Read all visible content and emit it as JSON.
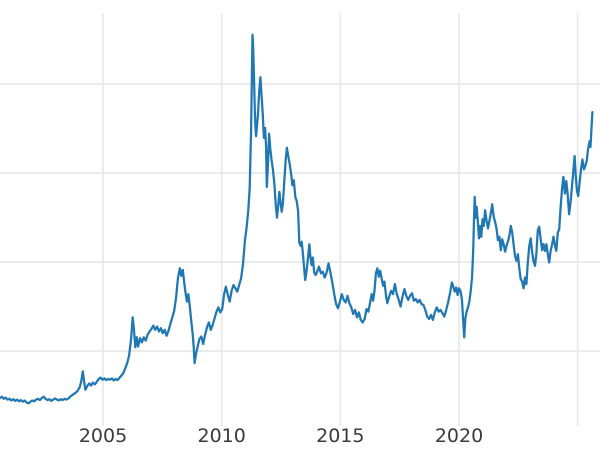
{
  "style": {
    "background": "#ffffff",
    "line_color": "#1f77b4",
    "grid_color": "#e8e8e8",
    "tick_label_color": "#3a3a3a"
  },
  "chart_data": {
    "type": "line",
    "title": "",
    "xlabel": "",
    "ylabel": "",
    "legend": null,
    "grid": true,
    "xlim": [
      2000.66,
      2025.94
    ],
    "ylim": [
      -1.56,
      52.59
    ],
    "x_tick_labels": [
      "2005",
      "2010",
      "2015",
      "2020"
    ],
    "x_tick_values": [
      2005,
      2010,
      2015,
      2020
    ],
    "x_grid_values": [
      2005,
      2010,
      2015,
      2020,
      2025
    ],
    "y_grid_values": [
      10.35,
      21.06,
      31.77,
      42.48
    ],
    "series": [
      {
        "name": "price",
        "color": "#1f77b4",
        "x": [
          2000.66,
          2000.74,
          2000.82,
          2000.9,
          2000.98,
          2001.06,
          2001.14,
          2001.22,
          2001.3,
          2001.38,
          2001.46,
          2001.54,
          2001.62,
          2001.7,
          2001.78,
          2001.86,
          2001.94,
          2002.02,
          2002.1,
          2002.18,
          2002.26,
          2002.34,
          2002.42,
          2002.5,
          2002.58,
          2002.66,
          2002.74,
          2002.82,
          2002.9,
          2002.98,
          2003.06,
          2003.14,
          2003.22,
          2003.3,
          2003.38,
          2003.46,
          2003.54,
          2003.62,
          2003.7,
          2003.78,
          2003.86,
          2003.94,
          2004.02,
          2004.08,
          2004.15,
          2004.2,
          2004.26,
          2004.34,
          2004.42,
          2004.5,
          2004.58,
          2004.66,
          2004.74,
          2004.82,
          2004.9,
          2004.98,
          2005.06,
          2005.14,
          2005.22,
          2005.3,
          2005.38,
          2005.46,
          2005.54,
          2005.62,
          2005.7,
          2005.78,
          2005.86,
          2005.94,
          2006.02,
          2006.1,
          2006.18,
          2006.25,
          2006.3,
          2006.36,
          2006.42,
          2006.48,
          2006.56,
          2006.64,
          2006.72,
          2006.8,
          2006.88,
          2006.96,
          2007.04,
          2007.12,
          2007.2,
          2007.28,
          2007.36,
          2007.44,
          2007.52,
          2007.6,
          2007.68,
          2007.76,
          2007.84,
          2007.92,
          2008.0,
          2008.08,
          2008.16,
          2008.24,
          2008.3,
          2008.36,
          2008.42,
          2008.48,
          2008.54,
          2008.6,
          2008.66,
          2008.72,
          2008.78,
          2008.82,
          2008.86,
          2008.92,
          2008.98,
          2009.06,
          2009.14,
          2009.22,
          2009.3,
          2009.38,
          2009.46,
          2009.54,
          2009.62,
          2009.7,
          2009.78,
          2009.86,
          2009.94,
          2010.02,
          2010.1,
          2010.18,
          2010.26,
          2010.34,
          2010.42,
          2010.5,
          2010.58,
          2010.66,
          2010.74,
          2010.82,
          2010.9,
          2010.98,
          2011.05,
          2011.12,
          2011.18,
          2011.24,
          2011.3,
          2011.33,
          2011.37,
          2011.41,
          2011.45,
          2011.49,
          2011.53,
          2011.58,
          2011.63,
          2011.68,
          2011.73,
          2011.78,
          2011.83,
          2011.87,
          2011.9,
          2011.95,
          2012.0,
          2012.05,
          2012.1,
          2012.16,
          2012.22,
          2012.28,
          2012.33,
          2012.38,
          2012.43,
          2012.48,
          2012.53,
          2012.58,
          2012.64,
          2012.7,
          2012.75,
          2012.8,
          2012.86,
          2012.92,
          2012.98,
          2013.04,
          2013.1,
          2013.16,
          2013.22,
          2013.27,
          2013.32,
          2013.37,
          2013.42,
          2013.47,
          2013.52,
          2013.58,
          2013.64,
          2013.69,
          2013.74,
          2013.79,
          2013.84,
          2013.9,
          2013.96,
          2014.02,
          2014.1,
          2014.18,
          2014.26,
          2014.34,
          2014.42,
          2014.5,
          2014.58,
          2014.66,
          2014.74,
          2014.82,
          2014.9,
          2014.98,
          2015.06,
          2015.14,
          2015.22,
          2015.3,
          2015.38,
          2015.46,
          2015.54,
          2015.62,
          2015.7,
          2015.78,
          2015.86,
          2015.94,
          2016.02,
          2016.1,
          2016.18,
          2016.26,
          2016.32,
          2016.38,
          2016.44,
          2016.5,
          2016.56,
          2016.62,
          2016.68,
          2016.74,
          2016.8,
          2016.86,
          2016.92,
          2016.98,
          2017.06,
          2017.14,
          2017.22,
          2017.3,
          2017.38,
          2017.46,
          2017.54,
          2017.62,
          2017.7,
          2017.78,
          2017.86,
          2017.94,
          2018.02,
          2018.1,
          2018.18,
          2018.26,
          2018.34,
          2018.42,
          2018.5,
          2018.58,
          2018.66,
          2018.74,
          2018.82,
          2018.9,
          2018.98,
          2019.06,
          2019.14,
          2019.22,
          2019.3,
          2019.38,
          2019.46,
          2019.54,
          2019.62,
          2019.7,
          2019.76,
          2019.82,
          2019.88,
          2019.94,
          2020.0,
          2020.06,
          2020.12,
          2020.17,
          2020.22,
          2020.27,
          2020.32,
          2020.38,
          2020.44,
          2020.5,
          2020.55,
          2020.6,
          2020.63,
          2020.66,
          2020.7,
          2020.74,
          2020.79,
          2020.84,
          2020.89,
          2020.94,
          2020.99,
          2021.04,
          2021.1,
          2021.16,
          2021.22,
          2021.28,
          2021.34,
          2021.4,
          2021.46,
          2021.52,
          2021.58,
          2021.64,
          2021.7,
          2021.76,
          2021.82,
          2021.88,
          2021.94,
          2022.0,
          2022.06,
          2022.12,
          2022.18,
          2022.24,
          2022.3,
          2022.36,
          2022.42,
          2022.48,
          2022.54,
          2022.6,
          2022.66,
          2022.72,
          2022.78,
          2022.84,
          2022.9,
          2022.96,
          2023.02,
          2023.08,
          2023.14,
          2023.2,
          2023.26,
          2023.32,
          2023.38,
          2023.44,
          2023.5,
          2023.56,
          2023.62,
          2023.68,
          2023.74,
          2023.8,
          2023.86,
          2023.92,
          2023.98,
          2024.04,
          2024.1,
          2024.16,
          2024.22,
          2024.28,
          2024.34,
          2024.4,
          2024.46,
          2024.52,
          2024.58,
          2024.64,
          2024.7,
          2024.76,
          2024.82,
          2024.87,
          2024.92,
          2024.97,
          2025.02,
          2025.08,
          2025.14,
          2025.2,
          2025.26,
          2025.32,
          2025.38,
          2025.44,
          2025.5,
          2025.54,
          2025.58,
          2025.62
        ],
        "y": [
          4.7,
          4.85,
          4.6,
          4.75,
          4.5,
          4.6,
          4.4,
          4.55,
          4.35,
          4.5,
          4.3,
          4.45,
          4.25,
          4.4,
          4.15,
          4.05,
          4.25,
          4.4,
          4.3,
          4.5,
          4.6,
          4.45,
          4.7,
          4.85,
          4.6,
          4.45,
          4.55,
          4.35,
          4.5,
          4.65,
          4.5,
          4.4,
          4.55,
          4.45,
          4.6,
          4.5,
          4.65,
          4.85,
          5.05,
          5.2,
          5.35,
          5.6,
          6.0,
          6.7,
          7.9,
          6.8,
          5.7,
          6.15,
          6.45,
          6.2,
          6.55,
          6.35,
          6.65,
          7.0,
          7.15,
          6.9,
          7.05,
          6.85,
          7.0,
          6.9,
          7.05,
          6.8,
          7.0,
          6.85,
          7.15,
          7.4,
          7.7,
          8.3,
          8.9,
          9.8,
          11.7,
          14.4,
          13.0,
          10.8,
          12.0,
          10.9,
          11.9,
          11.4,
          12.0,
          11.6,
          12.3,
          12.7,
          13.0,
          13.4,
          12.9,
          13.3,
          12.7,
          13.1,
          12.5,
          12.9,
          12.2,
          12.8,
          13.6,
          14.4,
          15.2,
          16.8,
          19.2,
          20.3,
          19.4,
          20.1,
          18.6,
          17.3,
          16.3,
          17.2,
          15.6,
          13.9,
          12.4,
          10.8,
          8.9,
          10.0,
          10.8,
          11.8,
          12.1,
          11.2,
          12.3,
          13.2,
          13.8,
          12.9,
          13.5,
          14.3,
          15.1,
          15.6,
          15.0,
          15.4,
          17.2,
          18.1,
          17.1,
          16.3,
          17.6,
          18.3,
          17.9,
          17.5,
          18.3,
          19.1,
          20.8,
          23.6,
          25.2,
          27.3,
          30.0,
          37.0,
          48.4,
          46.8,
          42.3,
          38.0,
          36.2,
          37.5,
          38.9,
          41.6,
          43.3,
          41.0,
          39.0,
          36.0,
          37.2,
          34.9,
          30.1,
          32.9,
          36.5,
          34.7,
          33.4,
          32.2,
          30.4,
          27.9,
          26.4,
          27.8,
          29.5,
          28.3,
          27.1,
          28.1,
          30.8,
          33.5,
          34.8,
          33.9,
          32.9,
          31.8,
          30.3,
          30.9,
          28.9,
          28.4,
          27.2,
          23.4,
          23.0,
          23.5,
          22.2,
          20.5,
          18.9,
          20.0,
          21.7,
          23.2,
          21.7,
          20.7,
          21.6,
          19.8,
          19.5,
          19.9,
          20.5,
          19.7,
          19.9,
          19.2,
          19.8,
          20.9,
          19.8,
          18.6,
          17.2,
          16.0,
          15.5,
          16.3,
          17.2,
          16.5,
          16.2,
          17.0,
          16.1,
          15.6,
          14.8,
          15.3,
          14.4,
          15.0,
          14.1,
          13.8,
          14.2,
          15.4,
          15.1,
          16.3,
          17.2,
          16.4,
          17.6,
          19.7,
          20.3,
          19.3,
          20.0,
          19.1,
          18.2,
          18.7,
          17.1,
          16.1,
          16.9,
          17.6,
          17.2,
          18.4,
          17.2,
          16.5,
          15.7,
          16.9,
          17.8,
          17.0,
          16.5,
          17.0,
          17.3,
          16.4,
          16.6,
          16.2,
          16.5,
          16.0,
          15.9,
          15.3,
          14.5,
          14.2,
          14.7,
          14.1,
          15.0,
          15.6,
          15.1,
          15.3,
          14.9,
          14.5,
          15.3,
          16.2,
          17.3,
          18.6,
          18.1,
          17.5,
          18.0,
          17.1,
          17.9,
          17.6,
          16.6,
          14.2,
          12.0,
          14.3,
          15.1,
          15.6,
          16.4,
          17.8,
          19.3,
          22.8,
          26.2,
          28.9,
          26.4,
          27.7,
          26.0,
          23.9,
          25.4,
          24.1,
          26.2,
          25.4,
          27.3,
          26.0,
          25.1,
          26.0,
          26.9,
          28.0,
          26.5,
          25.9,
          25.1,
          23.7,
          24.1,
          22.5,
          23.8,
          23.2,
          22.3,
          23.0,
          23.5,
          24.2,
          25.4,
          24.6,
          23.2,
          21.8,
          21.2,
          22.0,
          20.3,
          19.0,
          18.7,
          17.9,
          19.2,
          18.4,
          21.0,
          23.0,
          23.9,
          22.3,
          21.2,
          20.6,
          22.1,
          24.9,
          25.3,
          23.8,
          22.5,
          23.2,
          22.4,
          23.2,
          22.0,
          21.0,
          22.4,
          23.2,
          24.1,
          23.1,
          22.4,
          24.6,
          25.0,
          27.6,
          29.8,
          31.3,
          29.3,
          30.8,
          29.2,
          26.8,
          28.3,
          30.2,
          32.1,
          33.8,
          31.3,
          29.6,
          29.0,
          30.6,
          32.2,
          33.4,
          32.2,
          32.6,
          33.2,
          34.7,
          35.6,
          34.9,
          37.2,
          39.1
        ]
      }
    ]
  }
}
